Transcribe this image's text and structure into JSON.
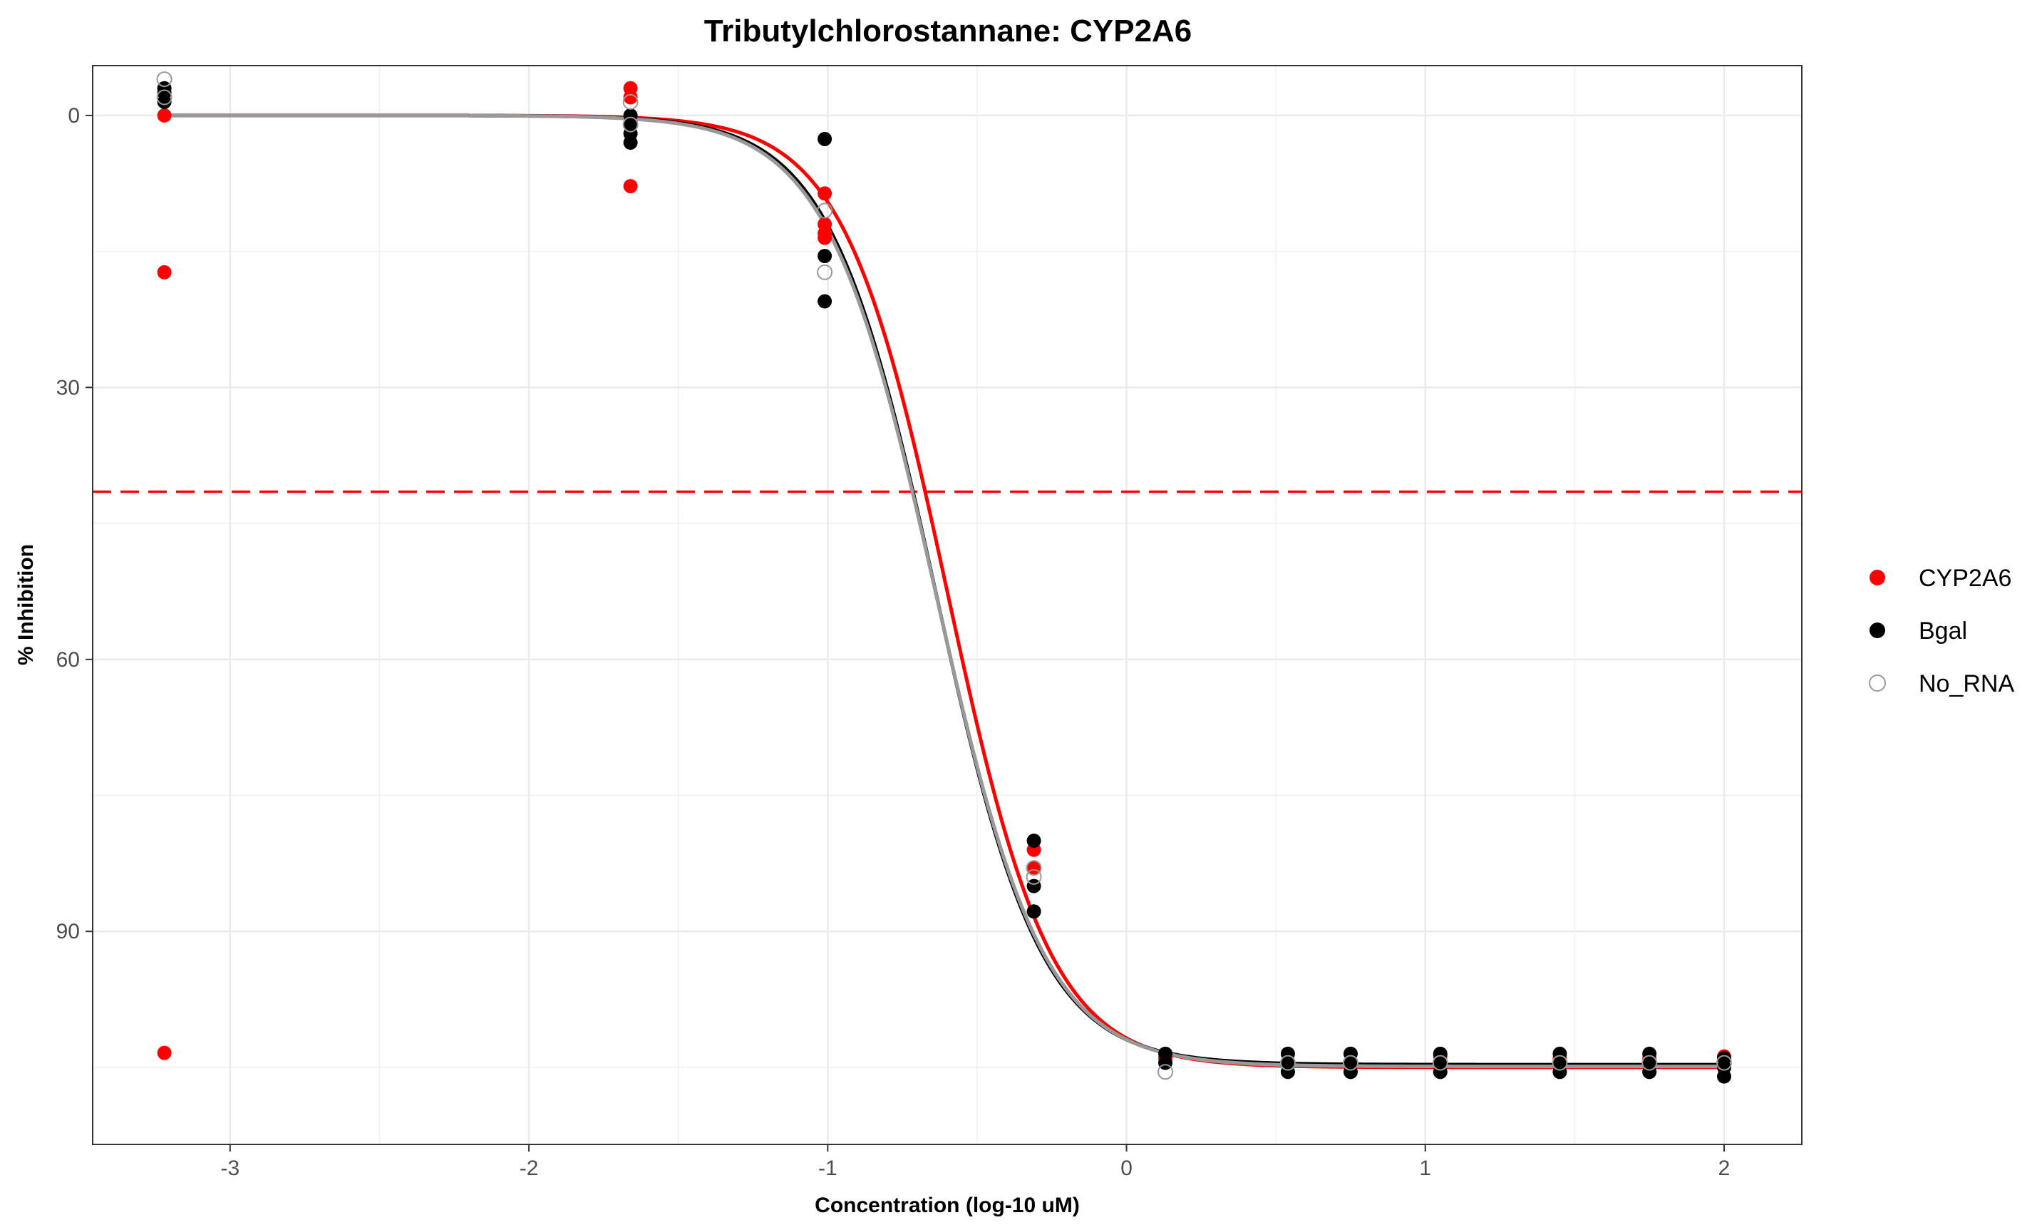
{
  "chart_data": {
    "type": "scatter",
    "title": "Tributylchlorostannane: CYP2A6",
    "xlabel": "Concentration (log-10 uM)",
    "ylabel": "% Inhibition",
    "xlim": [
      -3.46,
      2.26
    ],
    "ylim": [
      -5.5,
      113.5
    ],
    "y_reversed": true,
    "x_ticks": [
      -3,
      -2,
      -1,
      0,
      1,
      2
    ],
    "x_tick_labels": [
      "-3",
      "-2",
      "-1",
      "0",
      "1",
      "2"
    ],
    "y_ticks": [
      0,
      30,
      60,
      90
    ],
    "y_tick_labels": [
      "0",
      "30",
      "60",
      "90"
    ],
    "grid": true,
    "legend_position": "right",
    "reference_line": {
      "y": 41.5,
      "color": "#ff0000",
      "style": "dashed"
    },
    "series": [
      {
        "name": "CYP2A6",
        "color": "#ff0000",
        "marker": "filled-circle",
        "points": [
          [
            -3.22,
            0.0
          ],
          [
            -3.22,
            17.3
          ],
          [
            -3.22,
            103.4
          ],
          [
            -1.66,
            -3.0
          ],
          [
            -1.66,
            -2.0
          ],
          [
            -1.66,
            7.8
          ],
          [
            -1.01,
            8.6
          ],
          [
            -1.01,
            12.0
          ],
          [
            -1.01,
            13.0
          ],
          [
            -1.01,
            13.5
          ],
          [
            -0.31,
            81.0
          ],
          [
            -0.31,
            83.0
          ],
          [
            0.13,
            104.0
          ],
          [
            0.54,
            104.5
          ],
          [
            0.75,
            105.5
          ],
          [
            1.05,
            105.5
          ],
          [
            1.05,
            103.8
          ],
          [
            1.45,
            105.5
          ],
          [
            1.45,
            104.0
          ],
          [
            1.75,
            104.0
          ],
          [
            1.75,
            105.5
          ],
          [
            2.0,
            103.8
          ],
          [
            2.0,
            105.0
          ]
        ],
        "curve": {
          "top": 0.0,
          "bottom": 105.0,
          "log_ic50": -0.6,
          "hill": 2.5
        }
      },
      {
        "name": "Bgal",
        "color": "#000000",
        "marker": "filled-circle",
        "points": [
          [
            -3.22,
            -1.5
          ],
          [
            -3.22,
            -2.5
          ],
          [
            -3.22,
            -3.0
          ],
          [
            -1.66,
            0.0
          ],
          [
            -1.66,
            1.0
          ],
          [
            -1.66,
            2.0
          ],
          [
            -1.66,
            3.0
          ],
          [
            -1.01,
            2.6
          ],
          [
            -1.01,
            15.5
          ],
          [
            -1.01,
            20.5
          ],
          [
            -0.31,
            80.0
          ],
          [
            -0.31,
            85.0
          ],
          [
            -0.31,
            87.8
          ],
          [
            0.13,
            103.5
          ],
          [
            0.13,
            104.5
          ],
          [
            0.54,
            103.5
          ],
          [
            0.54,
            104.5
          ],
          [
            0.54,
            105.5
          ],
          [
            0.75,
            103.5
          ],
          [
            0.75,
            104.5
          ],
          [
            0.75,
            105.5
          ],
          [
            1.05,
            103.5
          ],
          [
            1.05,
            104.5
          ],
          [
            1.05,
            105.5
          ],
          [
            1.45,
            103.5
          ],
          [
            1.45,
            104.5
          ],
          [
            1.45,
            105.5
          ],
          [
            1.75,
            103.5
          ],
          [
            1.75,
            104.5
          ],
          [
            1.75,
            105.5
          ],
          [
            2.0,
            104.0
          ],
          [
            2.0,
            105.0
          ],
          [
            2.0,
            106.0
          ]
        ],
        "curve": {
          "top": 0.0,
          "bottom": 104.7,
          "log_ic50": -0.64,
          "hill": 2.45
        }
      },
      {
        "name": "No_RNA",
        "color": "#999999",
        "marker": "open-circle",
        "points": [
          [
            -3.22,
            -4.0
          ],
          [
            -3.22,
            -2.0
          ],
          [
            -1.66,
            -1.5
          ],
          [
            -1.66,
            1.0
          ],
          [
            -1.01,
            10.5
          ],
          [
            -1.01,
            17.3
          ],
          [
            -0.31,
            83.0
          ],
          [
            -0.31,
            84.0
          ],
          [
            0.13,
            105.5
          ],
          [
            0.54,
            104.5
          ],
          [
            0.75,
            104.5
          ],
          [
            1.05,
            104.5
          ],
          [
            1.45,
            104.5
          ],
          [
            1.75,
            104.5
          ],
          [
            2.0,
            104.5
          ]
        ],
        "curve": {
          "top": 0.0,
          "bottom": 104.9,
          "log_ic50": -0.64,
          "hill": 2.4
        }
      }
    ]
  }
}
